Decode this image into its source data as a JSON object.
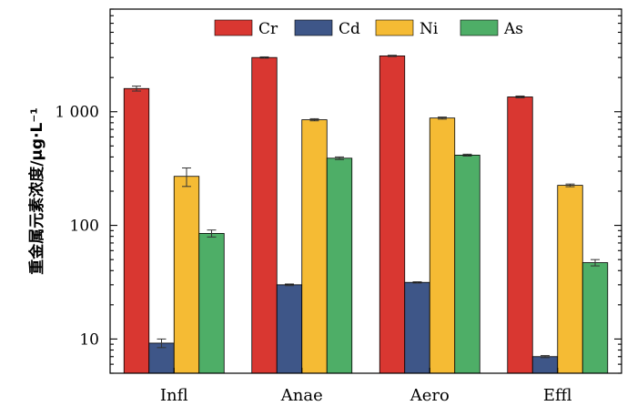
{
  "chart_data": {
    "type": "bar",
    "title": "",
    "xlabel": "",
    "ylabel": "重金属元素浓度/μg·L⁻¹",
    "yscale": "log",
    "ylim": [
      5,
      8000
    ],
    "yticks": [
      10,
      100,
      1000
    ],
    "ytick_labels": [
      "10",
      "100",
      "1 000"
    ],
    "categories": [
      "Infl",
      "Anae",
      "Aero",
      "Effl"
    ],
    "series": [
      {
        "name": "Cr",
        "color": "#d93731",
        "values": [
          1600,
          3000,
          3100,
          1350
        ],
        "errors": [
          80,
          40,
          40,
          25
        ]
      },
      {
        "name": "Cd",
        "color": "#3e5688",
        "values": [
          9.2,
          30,
          31.5,
          7
        ],
        "errors": [
          0.8,
          0.5,
          0.4,
          0.15
        ]
      },
      {
        "name": "Ni",
        "color": "#f5bb34",
        "values": [
          270,
          850,
          880,
          225
        ],
        "errors": [
          50,
          18,
          18,
          6
        ]
      },
      {
        "name": "As",
        "color": "#4eae67",
        "values": [
          85,
          390,
          415,
          47
        ],
        "errors": [
          6,
          10,
          8,
          3
        ]
      }
    ],
    "legend_position": "top",
    "grid": false
  }
}
